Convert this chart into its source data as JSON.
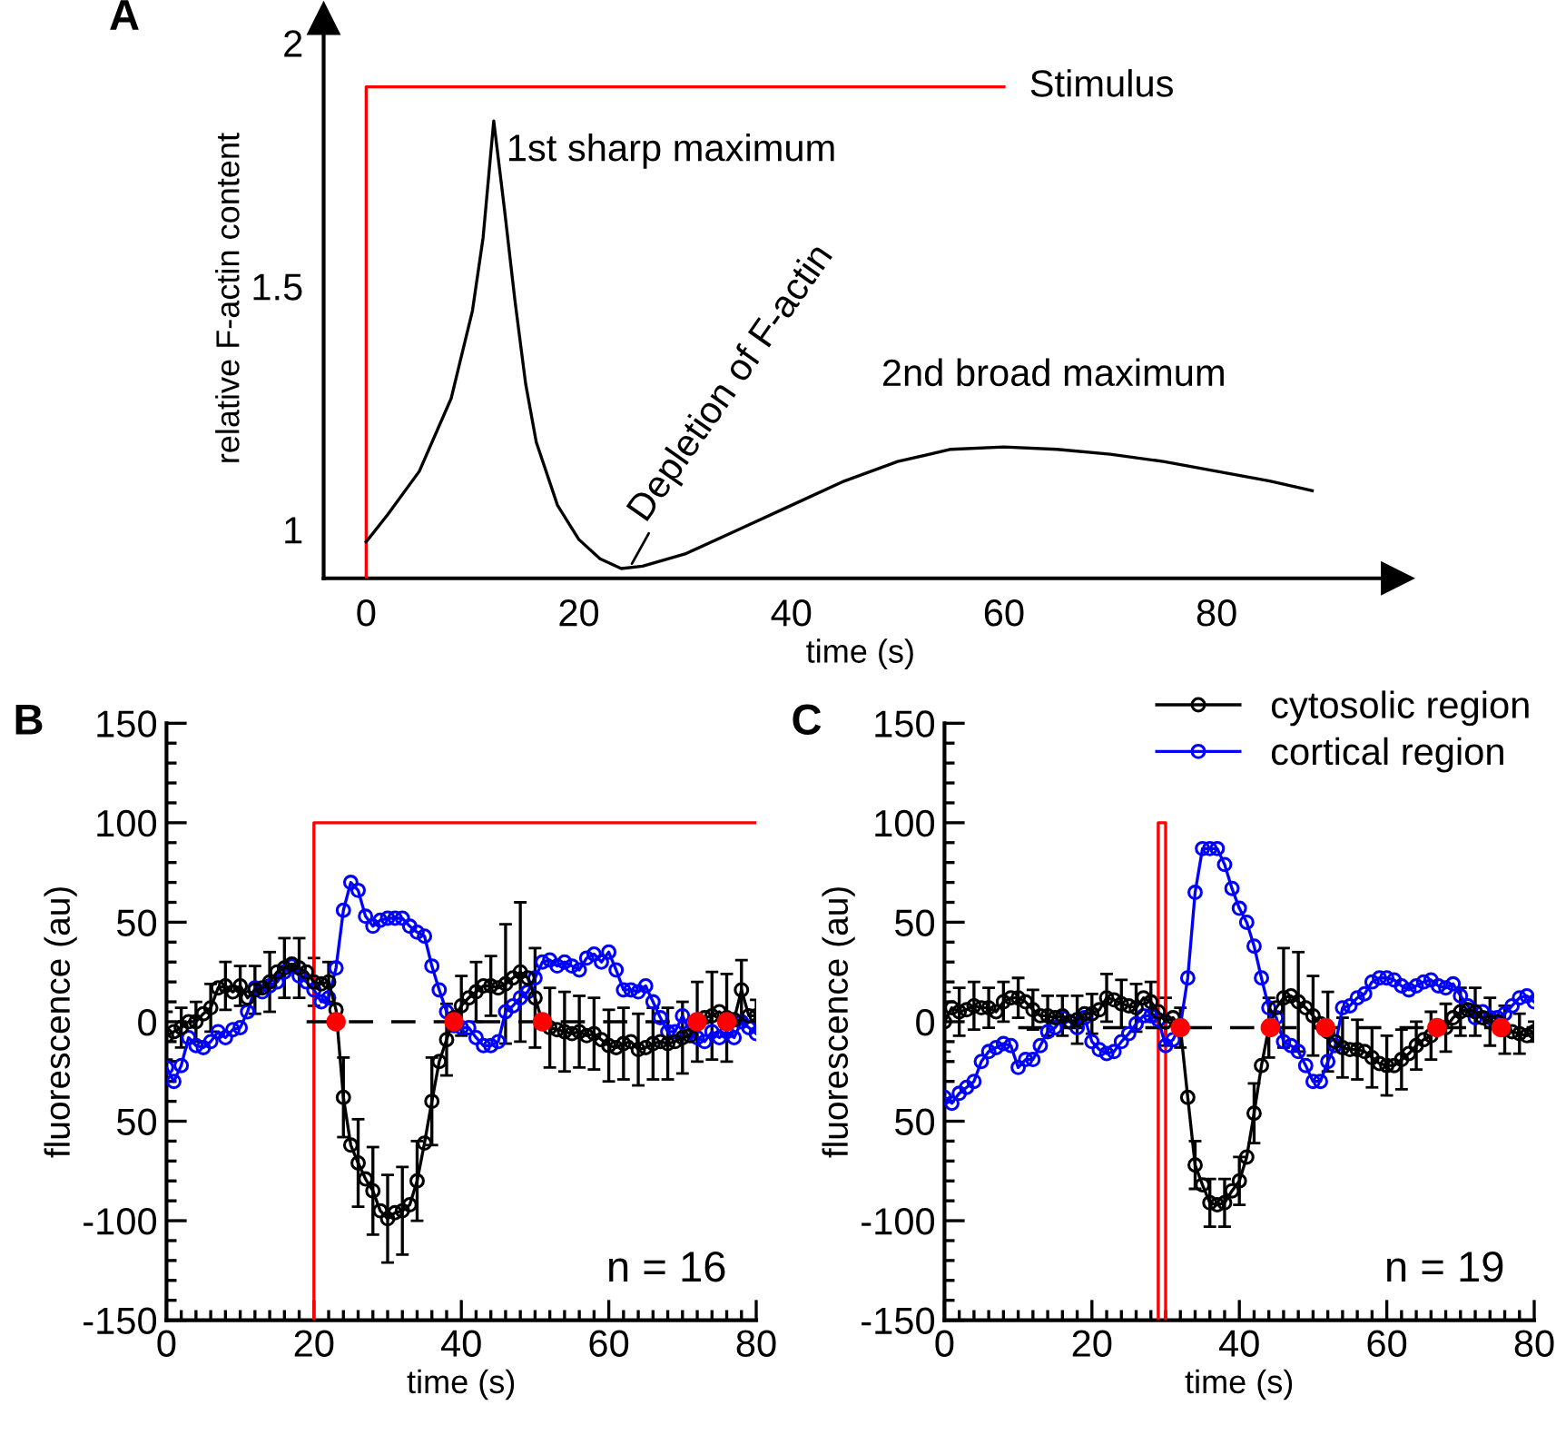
{
  "chart_data": [
    {
      "type": "line",
      "title": "A",
      "xlabel": "time (s)",
      "ylabel": "relative F-actin content",
      "xlim": [
        -4,
        97
      ],
      "ylim": [
        0.9,
        2.05
      ],
      "xticks": [
        0,
        20,
        40,
        60,
        80
      ],
      "yticks": [
        1,
        1.5,
        2
      ],
      "series": [
        {
          "name": "Stimulus",
          "color": "#ff0000",
          "x": [
            0,
            0,
            60
          ],
          "values": [
            0.9,
            1.91,
            1.91
          ]
        },
        {
          "color": "#000000",
          "x": [
            0,
            2,
            5,
            8,
            10,
            11,
            12,
            13,
            14,
            15,
            16,
            18,
            20,
            22,
            24,
            26,
            30,
            35,
            40,
            45,
            50,
            55,
            60,
            65,
            70,
            75,
            80,
            85,
            89
          ],
          "values": [
            0.975,
            1.03,
            1.12,
            1.27,
            1.45,
            1.6,
            1.84,
            1.66,
            1.47,
            1.3,
            1.18,
            1.05,
            0.98,
            0.94,
            0.92,
            0.925,
            0.95,
            1.0,
            1.05,
            1.1,
            1.14,
            1.165,
            1.17,
            1.165,
            1.155,
            1.14,
            1.12,
            1.1,
            1.08
          ]
        }
      ],
      "annotations": [
        {
          "text": "1st sharp maximum",
          "x": 12,
          "y": 1.84
        },
        {
          "text": "Depletion of F-actin",
          "x": 25,
          "y": 0.93
        },
        "2nd broad maximum"
      ]
    },
    {
      "type": "line",
      "title": "B",
      "xlabel": "time (s)",
      "ylabel": "fluorescence (au)",
      "xlim": [
        0,
        80
      ],
      "ylim": [
        -150,
        150
      ],
      "xticks": [
        0,
        {
          "value": 2,
          "label": null
        },
        {
          "value": 4,
          "label": null
        },
        {
          "value": 6,
          "label": null
        },
        {
          "value": 8,
          "label": null
        },
        {
          "value": 10,
          "label": null
        },
        {
          "value": 12,
          "label": null
        },
        {
          "value": 14,
          "label": null
        },
        {
          "value": 16,
          "label": null
        },
        {
          "value": 18,
          "label": null
        },
        20,
        {
          "value": 22,
          "label": null
        },
        {
          "value": 24,
          "label": null
        },
        {
          "value": 26,
          "label": null
        },
        {
          "value": 28,
          "label": null
        },
        {
          "value": 30,
          "label": null
        },
        {
          "value": 32,
          "label": null
        },
        {
          "value": 34,
          "label": null
        },
        {
          "value": 36,
          "label": null
        },
        {
          "value": 38,
          "label": null
        },
        40,
        {
          "value": 42,
          "label": null
        },
        {
          "value": 44,
          "label": null
        },
        {
          "value": 46,
          "label": null
        },
        {
          "value": 48,
          "label": null
        },
        {
          "value": 50,
          "label": null
        },
        {
          "value": 52,
          "label": null
        },
        {
          "value": 54,
          "label": null
        },
        {
          "value": 56,
          "label": null
        },
        {
          "value": 58,
          "label": null
        },
        60,
        {
          "value": 62,
          "label": null
        },
        {
          "value": 64,
          "label": null
        },
        {
          "value": 66,
          "label": null
        },
        {
          "value": 68,
          "label": null
        },
        {
          "value": 70,
          "label": null
        },
        {
          "value": 72,
          "label": null
        },
        {
          "value": 74,
          "label": null
        },
        {
          "value": 76,
          "label": null
        },
        {
          "value": 78,
          "label": null
        },
        80
      ],
      "yticks": [
        -150,
        {
          "value": -140,
          "label": null
        },
        {
          "value": -130,
          "label": null
        },
        {
          "value": -120,
          "label": null
        },
        {
          "value": -110,
          "label": null
        },
        -100,
        {
          "value": -90,
          "label": null
        },
        {
          "value": -80,
          "label": null
        },
        {
          "value": -70,
          "label": null
        },
        {
          "value": -60,
          "label": null
        },
        {
          "value": -50,
          "label": "50"
        },
        {
          "value": -40,
          "label": null
        },
        {
          "value": -30,
          "label": null
        },
        {
          "value": -20,
          "label": null
        },
        {
          "value": -10,
          "label": null
        },
        0,
        {
          "value": 10,
          "label": null
        },
        {
          "value": 20,
          "label": null
        },
        {
          "value": 30,
          "label": null
        },
        {
          "value": 40,
          "label": null
        },
        50,
        {
          "value": 60,
          "label": null
        },
        {
          "value": 70,
          "label": null
        },
        {
          "value": 80,
          "label": null
        },
        {
          "value": 90,
          "label": null
        },
        100,
        {
          "value": 110,
          "label": null
        },
        {
          "value": 120,
          "label": null
        },
        {
          "value": 130,
          "label": null
        },
        {
          "value": 140,
          "label": null
        },
        150
      ],
      "x": [
        0,
        1,
        2,
        3,
        4,
        5,
        6,
        7,
        8,
        9,
        10,
        11,
        12,
        13,
        14,
        15,
        16,
        17,
        18,
        19,
        20,
        21,
        22,
        23,
        24,
        25,
        26,
        27,
        28,
        29,
        30,
        31,
        32,
        33,
        34,
        35,
        36,
        37,
        38,
        39,
        40,
        41,
        42,
        43,
        44,
        45,
        46,
        47,
        48,
        49,
        50,
        51,
        52,
        53,
        54,
        55,
        56,
        57,
        58,
        59,
        60,
        61,
        62,
        63,
        64,
        65,
        66,
        67,
        68,
        69,
        70,
        71,
        72,
        73,
        74,
        75,
        76,
        77,
        78,
        79,
        80
      ],
      "series": [
        {
          "color": "#ff0000",
          "x": [
            20,
            20,
            80
          ],
          "values": [
            -150,
            100,
            100
          ]
        },
        {
          "color": "#000000",
          "type": "line",
          "line_style": "dashed",
          "x": [
            19,
            80
          ],
          "values": [
            0,
            0
          ]
        },
        {
          "color": "#0000ff",
          "marker": "circle",
          "values": [
            -23,
            -30,
            -22,
            -8,
            -12,
            -13,
            -10,
            -5,
            -8,
            -4,
            -3,
            5,
            17,
            15,
            18,
            20,
            25,
            28,
            23,
            20,
            16,
            10,
            12,
            27,
            56,
            70,
            66,
            53,
            48,
            51,
            52,
            52,
            52,
            48,
            45,
            43,
            28,
            16,
            5,
            -2,
            -3,
            -3,
            -8,
            -12,
            -12,
            -10,
            5,
            8,
            12,
            15,
            22,
            30,
            31,
            28,
            30,
            28,
            26,
            32,
            34,
            30,
            35,
            26,
            16,
            16,
            15,
            18,
            10,
            2,
            -5,
            -5,
            3,
            -5,
            -8,
            -10,
            -5,
            -8,
            -5,
            -8,
            0,
            -3,
            -6
          ]
        },
        {
          "color": "#000000",
          "marker": "circle",
          "values": [
            -7,
            -5,
            -3,
            0,
            0,
            4,
            7,
            17,
            18,
            15,
            18,
            12,
            16,
            17,
            20,
            25,
            27,
            29,
            27,
            25,
            20,
            19,
            20,
            6,
            -38,
            -62,
            -71,
            -79,
            -85,
            -95,
            -99,
            -96,
            -95,
            -92,
            -80,
            -61,
            -40,
            -20,
            -9,
            2,
            8,
            12,
            15,
            18,
            18,
            17,
            19,
            22,
            25,
            22,
            12,
            0,
            -3,
            -4,
            -5,
            -6,
            -5,
            -7,
            -6,
            -9,
            -12,
            -13,
            -11,
            -10,
            -14,
            -13,
            -11,
            -10,
            -11,
            -10,
            -8,
            -7,
            0,
            2,
            3,
            5,
            2,
            1,
            16,
            3,
            3
          ],
          "errors": [
            12,
            null,
            10,
            null,
            10,
            null,
            12,
            null,
            12,
            null,
            10,
            null,
            12,
            null,
            15,
            null,
            15,
            null,
            15,
            null,
            12,
            null,
            10,
            null,
            20,
            null,
            22,
            null,
            22,
            null,
            22,
            null,
            22,
            null,
            20,
            null,
            22,
            null,
            18,
            null,
            15,
            null,
            15,
            null,
            15,
            null,
            30,
            null,
            35,
            null,
            25,
            null,
            20,
            null,
            20,
            null,
            18,
            null,
            18,
            null,
            18,
            null,
            18,
            null,
            18,
            null,
            18,
            null,
            18,
            null,
            18,
            null,
            20,
            null,
            22,
            null,
            22,
            null,
            15,
            null,
            8
          ]
        },
        {
          "color": "#ff0000",
          "type": "scatter",
          "marker": "circle",
          "x": [
            23,
            39,
            51,
            72,
            76
          ],
          "values": [
            0,
            0,
            0,
            0,
            0
          ]
        }
      ],
      "annotations": [
        "n = 16"
      ]
    },
    {
      "type": "line",
      "title": "C",
      "xlabel": "time (s)",
      "ylabel": "fluorescence (au)",
      "legend": "top right",
      "xlim": [
        0,
        80
      ],
      "ylim": [
        -150,
        150
      ],
      "xticks": [
        0,
        {
          "value": 2,
          "label": null
        },
        {
          "value": 4,
          "label": null
        },
        {
          "value": 6,
          "label": null
        },
        {
          "value": 8,
          "label": null
        },
        {
          "value": 10,
          "label": null
        },
        {
          "value": 12,
          "label": null
        },
        {
          "value": 14,
          "label": null
        },
        {
          "value": 16,
          "label": null
        },
        {
          "value": 18,
          "label": null
        },
        20,
        {
          "value": 22,
          "label": null
        },
        {
          "value": 24,
          "label": null
        },
        {
          "value": 26,
          "label": null
        },
        {
          "value": 28,
          "label": null
        },
        {
          "value": 30,
          "label": null
        },
        {
          "value": 32,
          "label": null
        },
        {
          "value": 34,
          "label": null
        },
        {
          "value": 36,
          "label": null
        },
        {
          "value": 38,
          "label": null
        },
        40,
        {
          "value": 42,
          "label": null
        },
        {
          "value": 44,
          "label": null
        },
        {
          "value": 46,
          "label": null
        },
        {
          "value": 48,
          "label": null
        },
        {
          "value": 50,
          "label": null
        },
        {
          "value": 52,
          "label": null
        },
        {
          "value": 54,
          "label": null
        },
        {
          "value": 56,
          "label": null
        },
        {
          "value": 58,
          "label": null
        },
        60,
        {
          "value": 62,
          "label": null
        },
        {
          "value": 64,
          "label": null
        },
        {
          "value": 66,
          "label": null
        },
        {
          "value": 68,
          "label": null
        },
        {
          "value": 70,
          "label": null
        },
        {
          "value": 72,
          "label": null
        },
        {
          "value": 74,
          "label": null
        },
        {
          "value": 76,
          "label": null
        },
        {
          "value": 78,
          "label": null
        },
        80
      ],
      "yticks": [
        -150,
        {
          "value": -140,
          "label": null
        },
        {
          "value": -130,
          "label": null
        },
        {
          "value": -120,
          "label": null
        },
        {
          "value": -110,
          "label": null
        },
        -100,
        {
          "value": -90,
          "label": null
        },
        {
          "value": -80,
          "label": null
        },
        {
          "value": -70,
          "label": null
        },
        {
          "value": -60,
          "label": null
        },
        {
          "value": -50,
          "label": "50"
        },
        {
          "value": -40,
          "label": null
        },
        {
          "value": -30,
          "label": null
        },
        {
          "value": -20,
          "label": null
        },
        {
          "value": -10,
          "label": null
        },
        0,
        {
          "value": 10,
          "label": null
        },
        {
          "value": 20,
          "label": null
        },
        {
          "value": 30,
          "label": null
        },
        {
          "value": 40,
          "label": null
        },
        50,
        {
          "value": 60,
          "label": null
        },
        {
          "value": 70,
          "label": null
        },
        {
          "value": 80,
          "label": null
        },
        {
          "value": 90,
          "label": null
        },
        100,
        {
          "value": 110,
          "label": null
        },
        {
          "value": 120,
          "label": null
        },
        {
          "value": 130,
          "label": null
        },
        {
          "value": 140,
          "label": null
        },
        150
      ],
      "x": [
        0,
        1,
        2,
        3,
        4,
        5,
        6,
        7,
        8,
        9,
        10,
        11,
        12,
        13,
        14,
        15,
        16,
        17,
        18,
        19,
        20,
        21,
        22,
        23,
        24,
        25,
        26,
        27,
        28,
        29,
        30,
        31,
        32,
        33,
        34,
        35,
        36,
        37,
        38,
        39,
        40,
        41,
        42,
        43,
        44,
        45,
        46,
        47,
        48,
        49,
        50,
        51,
        52,
        53,
        54,
        55,
        56,
        57,
        58,
        59,
        60,
        61,
        62,
        63,
        64,
        65,
        66,
        67,
        68,
        69,
        70,
        71,
        72,
        73,
        74,
        75,
        76,
        77,
        78,
        79,
        80
      ],
      "series": [
        {
          "color": "#ff0000",
          "x": [
            29,
            29,
            30,
            30
          ],
          "values": [
            -150,
            100,
            100,
            -150
          ]
        },
        {
          "color": "#000000",
          "type": "line",
          "line_style": "dashed",
          "x": [
            10,
            80
          ],
          "values": [
            -3,
            -3
          ]
        },
        {
          "name": "cortical region",
          "color": "#0000ff",
          "marker": "circle",
          "values": [
            -38,
            -41,
            -36,
            -33,
            -30,
            -20,
            -15,
            -13,
            -11,
            -12,
            -23,
            -19,
            -19,
            -12,
            -5,
            -3,
            2,
            0,
            -3,
            2,
            -10,
            -14,
            -16,
            -15,
            -10,
            -6,
            -1,
            3,
            3,
            1,
            -12,
            -9,
            -2,
            22,
            65,
            87,
            87,
            87,
            79,
            67,
            57,
            50,
            38,
            22,
            7,
            2,
            -10,
            -12,
            -15,
            -22,
            -30,
            -30,
            -20,
            -12,
            7,
            8,
            12,
            14,
            20,
            22,
            22,
            21,
            18,
            16,
            18,
            20,
            21,
            18,
            17,
            19,
            13,
            8,
            2,
            5,
            2,
            2,
            4,
            8,
            12,
            13,
            10
          ]
        },
        {
          "name": "cytosolic region",
          "color": "#000000",
          "marker": "circle",
          "values": [
            0,
            7,
            5,
            6,
            8,
            7,
            7,
            5,
            10,
            12,
            12,
            10,
            6,
            3,
            3,
            2,
            3,
            0,
            1,
            4,
            4,
            6,
            12,
            11,
            9,
            8,
            7,
            12,
            10,
            5,
            0,
            2,
            -3,
            -38,
            -72,
            -82,
            -91,
            -92,
            -91,
            -85,
            -80,
            -68,
            -46,
            -22,
            -3,
            7,
            12,
            13,
            10,
            7,
            3,
            -1,
            -5,
            -10,
            -13,
            -14,
            -14,
            -15,
            -18,
            -21,
            -22,
            -22,
            -19,
            -16,
            -12,
            -9,
            -7,
            -3,
            -3,
            2,
            5,
            6,
            5,
            2,
            0,
            0,
            -4,
            -5,
            -6,
            -7,
            -5
          ],
          "errors": [
            15,
            null,
            12,
            null,
            12,
            null,
            10,
            null,
            10,
            null,
            10,
            null,
            10,
            null,
            10,
            null,
            10,
            null,
            12,
            null,
            10,
            null,
            12,
            null,
            12,
            null,
            12,
            null,
            10,
            null,
            12,
            null,
            10,
            null,
            12,
            null,
            12,
            null,
            12,
            null,
            12,
            null,
            15,
            null,
            15,
            null,
            25,
            null,
            25,
            null,
            20,
            null,
            20,
            null,
            15,
            null,
            15,
            null,
            15,
            null,
            15,
            null,
            15,
            null,
            12,
            null,
            12,
            null,
            12,
            null,
            12,
            null,
            12,
            null,
            12,
            null,
            12,
            null,
            10,
            null,
            5
          ]
        },
        {
          "color": "#ff0000",
          "type": "scatter",
          "marker": "circle",
          "x": [
            32,
            44.2,
            51.7,
            66.8,
            75.5
          ],
          "values": [
            -3,
            -3,
            -3,
            -3,
            -3
          ]
        }
      ],
      "annotations": [
        "n = 19"
      ]
    }
  ]
}
